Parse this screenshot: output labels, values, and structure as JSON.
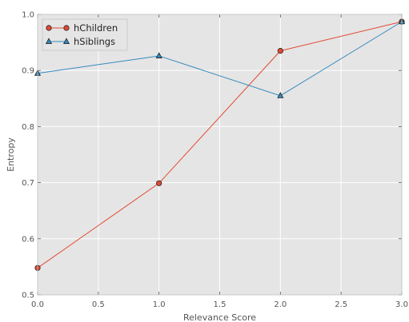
{
  "chart_data": {
    "type": "line",
    "xlabel": "Relevance Score",
    "ylabel": "Entropy",
    "xlim": [
      0,
      3
    ],
    "ylim": [
      0.5,
      1.0
    ],
    "xticks": [
      "0.0",
      "0.5",
      "1.0",
      "1.5",
      "2.0",
      "2.5",
      "3.0"
    ],
    "yticks": [
      "0.5",
      "0.6",
      "0.7",
      "0.8",
      "0.9",
      "1.0"
    ],
    "grid": true,
    "legend_position": "top-left",
    "x": [
      0,
      1,
      2,
      3
    ],
    "series": [
      {
        "name": "hChildren",
        "values": [
          0.548,
          0.699,
          0.935,
          0.987
        ],
        "color": "#e24a33",
        "marker": "circle"
      },
      {
        "name": "hSiblings",
        "values": [
          0.895,
          0.926,
          0.855,
          0.987
        ],
        "color": "#348abd",
        "marker": "triangle"
      }
    ]
  }
}
